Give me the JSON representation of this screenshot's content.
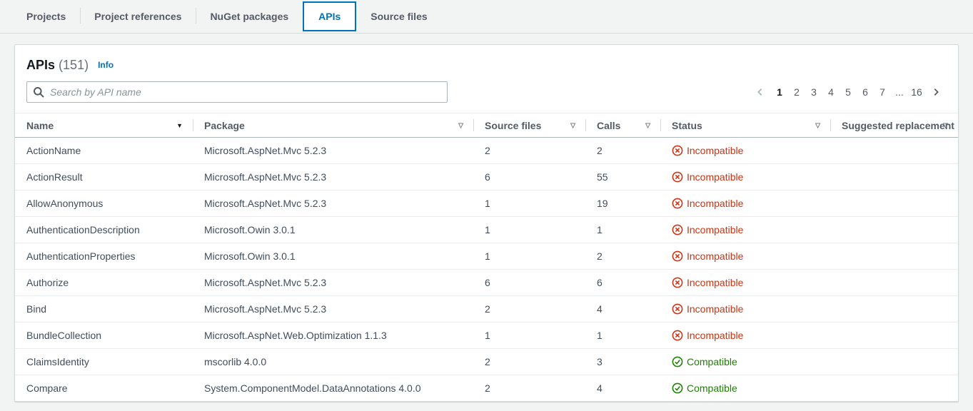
{
  "tabs": {
    "items": [
      {
        "label": "Projects",
        "active": false
      },
      {
        "label": "Project references",
        "active": false
      },
      {
        "label": "NuGet packages",
        "active": false
      },
      {
        "label": "APIs",
        "active": true
      },
      {
        "label": "Source files",
        "active": false
      }
    ]
  },
  "panel": {
    "title": "APIs",
    "count": "(151)",
    "info_label": "Info",
    "search": {
      "placeholder": "Search by API name",
      "value": ""
    },
    "pagination": {
      "prev_enabled": false,
      "next_enabled": true,
      "current": "1",
      "pages": [
        "1",
        "2",
        "3",
        "4",
        "5",
        "6",
        "7",
        "...",
        "16"
      ]
    }
  },
  "table": {
    "columns": [
      {
        "label": "Name",
        "sort": "filled"
      },
      {
        "label": "Package",
        "sort": "outline"
      },
      {
        "label": "Source files",
        "sort": "outline"
      },
      {
        "label": "Calls",
        "sort": "outline"
      },
      {
        "label": "Status",
        "sort": "outline"
      },
      {
        "label": "Suggested replacement",
        "sort": "outline"
      }
    ],
    "rows": [
      {
        "name": "ActionName",
        "package": "Microsoft.AspNet.Mvc 5.2.3",
        "source_files": "2",
        "calls": "2",
        "status": "Incompatible",
        "suggested_replacement": ""
      },
      {
        "name": "ActionResult",
        "package": "Microsoft.AspNet.Mvc 5.2.3",
        "source_files": "6",
        "calls": "55",
        "status": "Incompatible",
        "suggested_replacement": ""
      },
      {
        "name": "AllowAnonymous",
        "package": "Microsoft.AspNet.Mvc 5.2.3",
        "source_files": "1",
        "calls": "19",
        "status": "Incompatible",
        "suggested_replacement": ""
      },
      {
        "name": "AuthenticationDescription",
        "package": "Microsoft.Owin 3.0.1",
        "source_files": "1",
        "calls": "1",
        "status": "Incompatible",
        "suggested_replacement": ""
      },
      {
        "name": "AuthenticationProperties",
        "package": "Microsoft.Owin 3.0.1",
        "source_files": "1",
        "calls": "2",
        "status": "Incompatible",
        "suggested_replacement": ""
      },
      {
        "name": "Authorize",
        "package": "Microsoft.AspNet.Mvc 5.2.3",
        "source_files": "6",
        "calls": "6",
        "status": "Incompatible",
        "suggested_replacement": ""
      },
      {
        "name": "Bind",
        "package": "Microsoft.AspNet.Mvc 5.2.3",
        "source_files": "2",
        "calls": "4",
        "status": "Incompatible",
        "suggested_replacement": ""
      },
      {
        "name": "BundleCollection",
        "package": "Microsoft.AspNet.Web.Optimization 1.1.3",
        "source_files": "1",
        "calls": "1",
        "status": "Incompatible",
        "suggested_replacement": ""
      },
      {
        "name": "ClaimsIdentity",
        "package": "mscorlib 4.0.0",
        "source_files": "2",
        "calls": "3",
        "status": "Compatible",
        "suggested_replacement": ""
      },
      {
        "name": "Compare",
        "package": "System.ComponentModel.DataAnnotations 4.0.0",
        "source_files": "2",
        "calls": "4",
        "status": "Compatible",
        "suggested_replacement": ""
      }
    ]
  },
  "colors": {
    "accent_blue": "#0073bb",
    "incompatible_red": "#d13212",
    "compatible_green": "#1d8102",
    "header_gray": "#545b64",
    "page_background": "#f2f3f3"
  }
}
